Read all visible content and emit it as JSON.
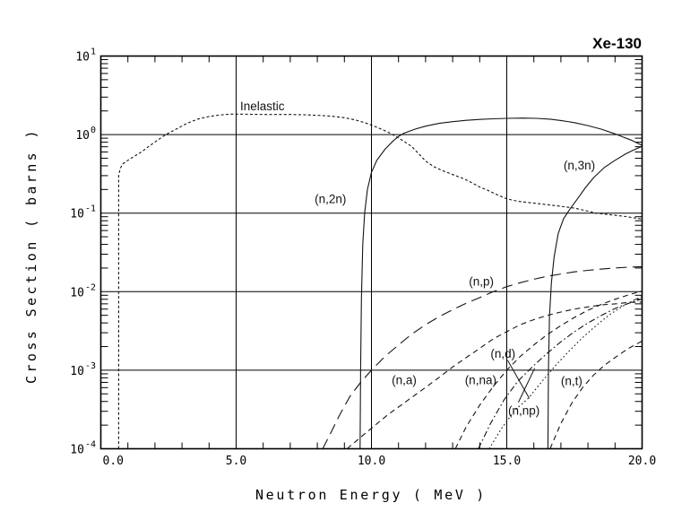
{
  "title": "Xe-130",
  "chart_data": {
    "type": "line",
    "title": "Xe-130",
    "xlabel": "Neutron Energy ( MeV )",
    "ylabel": "Cross Section ( barns )",
    "xlim": [
      0,
      20
    ],
    "ylim": [
      0.0001,
      10
    ],
    "yscale": "log",
    "xscale": "linear",
    "grid": true,
    "legend": "inline-curve-labels",
    "x_major_ticks": [
      0,
      5,
      10,
      15,
      20
    ],
    "x_tick_labels": [
      "0.0",
      "5.0",
      "10.0",
      "15.0",
      "20.0"
    ],
    "x_minor_tick_step": 1,
    "y_exponent_base": "10",
    "y_exponents": [
      1,
      0,
      -1,
      -2,
      -3,
      -4
    ],
    "series": [
      {
        "name": "inelastic",
        "label": "Inelastic",
        "style": "fine",
        "label_pos": {
          "x": 5.15,
          "y": 2.05
        },
        "points": [
          [
            0.66,
            0.0001
          ],
          [
            0.66,
            0.3
          ],
          [
            0.72,
            0.37
          ],
          [
            0.8,
            0.42
          ],
          [
            1.0,
            0.47
          ],
          [
            1.2,
            0.52
          ],
          [
            1.5,
            0.6
          ],
          [
            1.8,
            0.72
          ],
          [
            2.1,
            0.85
          ],
          [
            2.4,
            1.0
          ],
          [
            2.8,
            1.18
          ],
          [
            3.2,
            1.4
          ],
          [
            3.6,
            1.58
          ],
          [
            4.0,
            1.7
          ],
          [
            4.4,
            1.78
          ],
          [
            4.8,
            1.82
          ],
          [
            5.2,
            1.82
          ],
          [
            5.6,
            1.81
          ],
          [
            6.0,
            1.8
          ],
          [
            6.5,
            1.8
          ],
          [
            7.0,
            1.8
          ],
          [
            7.5,
            1.79
          ],
          [
            8.0,
            1.76
          ],
          [
            8.5,
            1.72
          ],
          [
            9.0,
            1.64
          ],
          [
            9.4,
            1.54
          ],
          [
            9.8,
            1.4
          ],
          [
            10.2,
            1.24
          ],
          [
            10.6,
            1.08
          ],
          [
            10.9,
            0.95
          ],
          [
            11.2,
            0.82
          ],
          [
            11.5,
            0.7
          ],
          [
            12.0,
            0.46
          ],
          [
            12.3,
            0.39
          ],
          [
            12.6,
            0.35
          ],
          [
            13.0,
            0.31
          ],
          [
            13.4,
            0.275
          ],
          [
            13.7,
            0.245
          ],
          [
            14.0,
            0.215
          ],
          [
            14.3,
            0.195
          ],
          [
            14.7,
            0.168
          ],
          [
            15.0,
            0.152
          ],
          [
            15.4,
            0.142
          ],
          [
            16.0,
            0.134
          ],
          [
            16.5,
            0.128
          ],
          [
            17.0,
            0.122
          ],
          [
            17.5,
            0.116
          ],
          [
            18.0,
            0.106
          ],
          [
            18.3,
            0.1
          ],
          [
            18.7,
            0.0965
          ],
          [
            19.0,
            0.094
          ],
          [
            19.4,
            0.0905
          ],
          [
            19.7,
            0.087
          ],
          [
            20.0,
            0.084
          ]
        ]
      },
      {
        "name": "n2n",
        "label": "(n,2n)",
        "style": "solid",
        "label_pos": {
          "x": 7.9,
          "y": 0.135
        },
        "points": [
          [
            9.58,
            0.0001
          ],
          [
            9.6,
            0.001
          ],
          [
            9.63,
            0.008
          ],
          [
            9.68,
            0.04
          ],
          [
            9.75,
            0.1
          ],
          [
            9.85,
            0.2
          ],
          [
            10.0,
            0.33
          ],
          [
            10.2,
            0.47
          ],
          [
            10.5,
            0.65
          ],
          [
            10.8,
            0.83
          ],
          [
            11.0,
            0.95
          ],
          [
            11.2,
            1.04
          ],
          [
            11.6,
            1.17
          ],
          [
            12.0,
            1.28
          ],
          [
            12.5,
            1.39
          ],
          [
            13.0,
            1.46
          ],
          [
            13.5,
            1.52
          ],
          [
            14.0,
            1.56
          ],
          [
            14.5,
            1.59
          ],
          [
            15.0,
            1.61
          ],
          [
            15.6,
            1.62
          ],
          [
            16.1,
            1.61
          ],
          [
            16.6,
            1.57
          ],
          [
            17.0,
            1.51
          ],
          [
            17.5,
            1.42
          ],
          [
            18.0,
            1.3
          ],
          [
            18.5,
            1.17
          ],
          [
            19.0,
            1.02
          ],
          [
            19.3,
            0.93
          ],
          [
            19.6,
            0.85
          ],
          [
            20.0,
            0.73
          ]
        ]
      },
      {
        "name": "n3n",
        "label": "(n,3n)",
        "style": "solid",
        "label_pos": {
          "x": 17.1,
          "y": 0.36
        },
        "points": [
          [
            16.52,
            0.0001
          ],
          [
            16.54,
            0.001
          ],
          [
            16.58,
            0.005
          ],
          [
            16.65,
            0.013
          ],
          [
            16.75,
            0.028
          ],
          [
            16.9,
            0.055
          ],
          [
            17.1,
            0.085
          ],
          [
            17.35,
            0.115
          ],
          [
            17.6,
            0.15
          ],
          [
            17.9,
            0.21
          ],
          [
            18.2,
            0.28
          ],
          [
            18.6,
            0.38
          ],
          [
            19.0,
            0.47
          ],
          [
            19.4,
            0.57
          ],
          [
            19.7,
            0.64
          ],
          [
            20.0,
            0.71
          ]
        ]
      },
      {
        "name": "np",
        "label": "(n,p)",
        "style": "longdash",
        "label_pos": {
          "x": 13.6,
          "y": 0.012
        },
        "points": [
          [
            8.2,
            0.0001
          ],
          [
            8.5,
            0.00016
          ],
          [
            8.8,
            0.00026
          ],
          [
            9.2,
            0.00046
          ],
          [
            9.6,
            0.0007
          ],
          [
            10.0,
            0.001
          ],
          [
            10.5,
            0.0015
          ],
          [
            11.0,
            0.0021
          ],
          [
            11.5,
            0.0029
          ],
          [
            12.0,
            0.0038
          ],
          [
            12.5,
            0.0048
          ],
          [
            13.0,
            0.0059
          ],
          [
            13.5,
            0.0071
          ],
          [
            14.0,
            0.0084
          ],
          [
            14.5,
            0.01
          ],
          [
            15.0,
            0.0116
          ],
          [
            15.5,
            0.013
          ],
          [
            16.0,
            0.0144
          ],
          [
            16.5,
            0.0157
          ],
          [
            17.0,
            0.0168
          ],
          [
            17.5,
            0.0179
          ],
          [
            18.0,
            0.0187
          ],
          [
            18.5,
            0.0194
          ],
          [
            19.0,
            0.02
          ],
          [
            19.5,
            0.0205
          ],
          [
            20.0,
            0.0208
          ]
        ]
      },
      {
        "name": "na",
        "label": "(n,a)",
        "style": "shortdash",
        "label_pos": {
          "x": 10.75,
          "y": 0.00066
        },
        "points": [
          [
            9.1,
            0.0001
          ],
          [
            9.6,
            0.00014
          ],
          [
            10.1,
            0.000195
          ],
          [
            10.6,
            0.00027
          ],
          [
            11.1,
            0.00036
          ],
          [
            11.6,
            0.00048
          ],
          [
            12.1,
            0.00064
          ],
          [
            12.6,
            0.00086
          ],
          [
            13.0,
            0.0011
          ],
          [
            13.5,
            0.00145
          ],
          [
            14.0,
            0.0019
          ],
          [
            14.5,
            0.0025
          ],
          [
            15.0,
            0.0031
          ],
          [
            15.5,
            0.0038
          ],
          [
            16.0,
            0.0044
          ],
          [
            16.5,
            0.005
          ],
          [
            17.0,
            0.0055
          ],
          [
            17.5,
            0.006
          ],
          [
            18.0,
            0.0064
          ],
          [
            18.5,
            0.0068
          ],
          [
            19.0,
            0.007
          ],
          [
            19.5,
            0.0073
          ],
          [
            20.0,
            0.0074
          ]
        ]
      },
      {
        "name": "nna",
        "label": "(n,na)",
        "style": "shortdash",
        "label_pos": {
          "x": 13.45,
          "y": 0.00066
        },
        "points": [
          [
            13.1,
            0.0001
          ],
          [
            13.5,
            0.00019
          ],
          [
            14.0,
            0.00036
          ],
          [
            14.5,
            0.00062
          ],
          [
            15.0,
            0.001
          ],
          [
            15.5,
            0.0015
          ],
          [
            16.0,
            0.0021
          ],
          [
            16.5,
            0.00285
          ],
          [
            17.0,
            0.0037
          ],
          [
            17.5,
            0.0047
          ],
          [
            18.0,
            0.0058
          ],
          [
            18.5,
            0.0069
          ],
          [
            19.0,
            0.008
          ],
          [
            19.5,
            0.0091
          ],
          [
            20.0,
            0.0102
          ]
        ]
      },
      {
        "name": "nd",
        "label": "(n,d)",
        "style": "dot",
        "label_pos": {
          "x": 14.4,
          "y": 0.00145
        },
        "leader": {
          "x1": 15.03,
          "y1": 0.00134,
          "x2": 15.83,
          "y2": 0.00044
        },
        "points": [
          [
            14.35,
            0.0001
          ],
          [
            14.8,
            0.00018
          ],
          [
            15.3,
            0.00031
          ],
          [
            15.8,
            0.00044
          ],
          [
            16.3,
            0.00072
          ],
          [
            16.8,
            0.00115
          ],
          [
            17.3,
            0.00175
          ],
          [
            17.8,
            0.0026
          ],
          [
            18.3,
            0.0037
          ],
          [
            18.8,
            0.0051
          ],
          [
            19.3,
            0.0066
          ],
          [
            19.7,
            0.0078
          ],
          [
            20.0,
            0.0087
          ]
        ]
      },
      {
        "name": "nnp",
        "label": "(n,np)",
        "style": "dashdot",
        "label_pos": {
          "x": 15.05,
          "y": 0.00027
        },
        "leader": {
          "x1": 15.43,
          "y1": 0.00039,
          "x2": 16.03,
          "y2": 0.00106
        },
        "points": [
          [
            13.95,
            0.0001
          ],
          [
            14.4,
            0.00021
          ],
          [
            14.9,
            0.00042
          ],
          [
            15.4,
            0.00072
          ],
          [
            16.0,
            0.00115
          ],
          [
            16.5,
            0.00165
          ],
          [
            17.0,
            0.0023
          ],
          [
            17.5,
            0.0031
          ],
          [
            18.0,
            0.004
          ],
          [
            18.5,
            0.005
          ],
          [
            19.0,
            0.0061
          ],
          [
            19.5,
            0.0071
          ],
          [
            20.0,
            0.0081
          ]
        ]
      },
      {
        "name": "nt",
        "label": "(n,t)",
        "style": "shortdash",
        "label_pos": {
          "x": 17.0,
          "y": 0.00065
        },
        "points": [
          [
            16.6,
            0.0001
          ],
          [
            17.0,
            0.00021
          ],
          [
            17.4,
            0.00038
          ],
          [
            17.8,
            0.0006
          ],
          [
            18.2,
            0.00086
          ],
          [
            18.6,
            0.00115
          ],
          [
            19.0,
            0.00145
          ],
          [
            19.5,
            0.0019
          ],
          [
            20.0,
            0.00235
          ]
        ]
      }
    ]
  }
}
